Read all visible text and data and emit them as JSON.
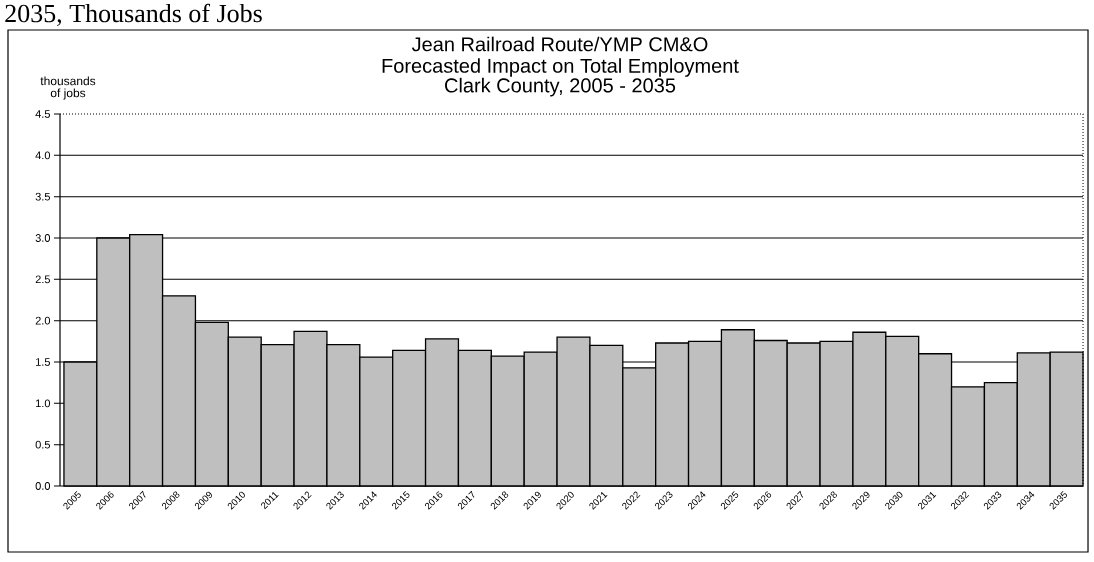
{
  "chart_data": {
    "type": "bar",
    "title": "Jean Railroad Route/YMP CM&O",
    "subtitle": "Forecasted Impact on Total Employment Clark County, 2005 - 2035",
    "ylabel": "thousands of jobs",
    "annotations": [
      "2035, Thousands of Jobs"
    ],
    "categories": [
      "2005",
      "2006",
      "2007",
      "2008",
      "2009",
      "2010",
      "2011",
      "2012",
      "2013",
      "2014",
      "2015",
      "2016",
      "2017",
      "2018",
      "2019",
      "2020",
      "2021",
      "2022",
      "2023",
      "2024",
      "2025",
      "2026",
      "2027",
      "2028",
      "2029",
      "2030",
      "2031",
      "2032",
      "2033",
      "2034",
      "2035"
    ],
    "values": [
      1.5,
      3.0,
      3.04,
      2.3,
      1.98,
      1.8,
      1.71,
      1.87,
      1.71,
      1.56,
      1.64,
      1.78,
      1.64,
      1.57,
      1.62,
      1.8,
      1.7,
      1.43,
      1.73,
      1.75,
      1.89,
      1.76,
      1.73,
      1.75,
      1.86,
      1.81,
      1.6,
      1.2,
      1.25,
      1.61,
      1.62
    ],
    "color": "#bfbfbf",
    "ylim": [
      0,
      4.5
    ],
    "yticks": [
      {
        "value": 0,
        "label": "0.0"
      },
      0.5,
      {
        "value": 1,
        "label": "1.0"
      },
      1.5,
      {
        "value": 2,
        "label": "2.0"
      },
      2.5,
      {
        "value": 3,
        "label": "3.0"
      },
      3.5,
      {
        "value": 4,
        "label": "4.0"
      },
      4.5
    ],
    "grid": "y"
  }
}
